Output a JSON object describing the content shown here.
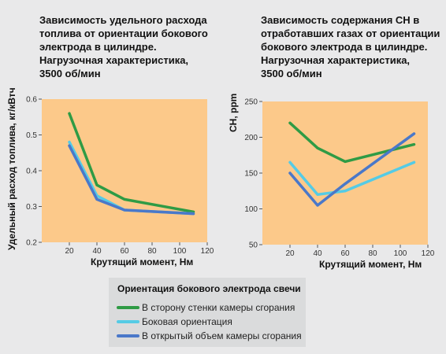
{
  "colors": {
    "background": "#e9e9ea",
    "plot_area": "#fcc98a",
    "series_green": "#2f9b45",
    "series_cyan": "#55cbe5",
    "series_blue": "#4a78c9",
    "legend_bg": "#dadbdc"
  },
  "chart_data": [
    {
      "type": "line",
      "title_lines": [
        "Зависимость удельного расхода",
        "топлива от ориентации бокового",
        "электрода в цилиндре.",
        "Нагрузочная характеристика,",
        "3500 об/мин"
      ],
      "xlabel": "Крутящий момент, Нм",
      "ylabel": "Удельный расход топлива, кг/кВтч",
      "xlim": [
        0,
        120
      ],
      "ylim": [
        0.2,
        0.6
      ],
      "xticks": [
        "20",
        "40",
        "60",
        "80",
        "100",
        "120"
      ],
      "yticks": [
        "0.2",
        "0.3",
        "0.4",
        "0.5",
        "0.6"
      ],
      "grid": false,
      "series": [
        {
          "name": "В сторону стенки камеры сгорания",
          "color": "#2f9b45",
          "x": [
            20,
            40,
            60,
            110
          ],
          "y": [
            0.56,
            0.36,
            0.32,
            0.285
          ]
        },
        {
          "name": "Боковая ориентация",
          "color": "#55cbe5",
          "x": [
            20,
            40,
            60,
            110
          ],
          "y": [
            0.48,
            0.33,
            0.29,
            0.28
          ]
        },
        {
          "name": "В открытый объем камеры сгорания",
          "color": "#4a78c9",
          "x": [
            20,
            40,
            60,
            110
          ],
          "y": [
            0.47,
            0.32,
            0.29,
            0.28
          ]
        }
      ]
    },
    {
      "type": "line",
      "title_lines": [
        "Зависимость содержания СН в",
        "отработавших газах от ориентации",
        "бокового электрода в цилиндре.",
        "Нагрузочная характеристика,",
        "3500 об/мин"
      ],
      "xlabel": "Крутящий момент, Нм",
      "ylabel": "CH, ppm",
      "xlim": [
        0,
        120
      ],
      "ylim": [
        50,
        250
      ],
      "xticks": [
        "20",
        "40",
        "60",
        "80",
        "100",
        "120"
      ],
      "yticks": [
        "50",
        "100",
        "150",
        "200",
        "250"
      ],
      "grid": false,
      "series": [
        {
          "name": "В сторону стенки камеры сгорания",
          "color": "#2f9b45",
          "x": [
            20,
            40,
            60,
            110
          ],
          "y": [
            220,
            185,
            166,
            190
          ]
        },
        {
          "name": "Боковая ориентация",
          "color": "#55cbe5",
          "x": [
            20,
            40,
            60,
            110
          ],
          "y": [
            165,
            120,
            125,
            165
          ]
        },
        {
          "name": "В открытый объем камеры сгорания",
          "color": "#4a78c9",
          "x": [
            20,
            40,
            60,
            110
          ],
          "y": [
            150,
            105,
            135,
            205
          ]
        }
      ]
    }
  ],
  "legend": {
    "title": "Ориентация бокового электрода свечи",
    "items": [
      {
        "label": "В сторону стенки камеры сгорания",
        "color": "#2f9b45"
      },
      {
        "label": "Боковая ориентация",
        "color": "#55cbe5"
      },
      {
        "label": "В открытый объем камеры сгорания",
        "color": "#4a78c9"
      }
    ]
  }
}
